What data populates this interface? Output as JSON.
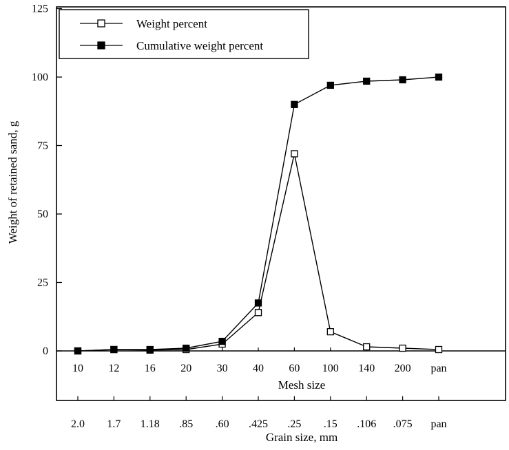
{
  "chart_data": {
    "type": "line",
    "title": "",
    "ylabel": "Weight of retained sand, g",
    "xlabel": "Mesh size",
    "xlabel_secondary": "Grain size, mm",
    "categories": [
      "10",
      "12",
      "16",
      "20",
      "30",
      "40",
      "60",
      "100",
      "140",
      "200",
      "pan"
    ],
    "categories_secondary": [
      "2.0",
      "1.7",
      "1.18",
      ".85",
      ".60",
      ".425",
      ".25",
      ".15",
      ".106",
      ".075",
      "pan"
    ],
    "yticks": [
      "0",
      "25",
      "50",
      "75",
      "100",
      "125"
    ],
    "ylim": [
      0,
      125
    ],
    "legend_position": "top-left",
    "series": [
      {
        "name": "Weight percent",
        "marker": "open-square",
        "values": [
          0,
          0.5,
          0.3,
          0.5,
          2.5,
          14,
          72,
          7,
          1.5,
          1,
          0.5
        ]
      },
      {
        "name": "Cumulative weight percent",
        "marker": "filled-square",
        "values": [
          0,
          0.5,
          0.5,
          1,
          3.5,
          17.5,
          90,
          97,
          98.5,
          99,
          100
        ]
      }
    ]
  }
}
